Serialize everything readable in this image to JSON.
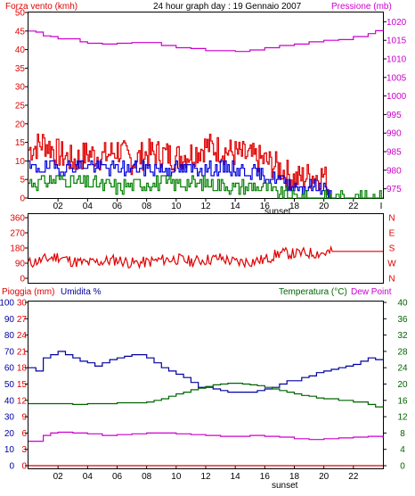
{
  "colors": {
    "wind": "#e00000",
    "gust_low": "#0000e0",
    "gust_green": "#008000",
    "pressure": "#cc00cc",
    "dir": "#e00000",
    "humidity": "#0000a0",
    "temp": "#006400",
    "dew": "#cc00cc",
    "rain": "#e00000",
    "axis": "#000000"
  },
  "chart_data": [
    {
      "type": "line",
      "title": "24 hour graph day : 19 Gennaio 2007",
      "left_axis_label": "Forza vento (kmh)",
      "right_axis_label": "Pressione (mb)",
      "left_ticks": [
        "0",
        "5",
        "10",
        "15",
        "20",
        "25",
        "30",
        "35",
        "40",
        "45",
        "50"
      ],
      "right_ticks": [
        "975",
        "980",
        "985",
        "990",
        "995",
        "1000",
        "1005",
        "1010",
        "1015",
        "1020"
      ],
      "x_ticks": [
        "02",
        "04",
        "06",
        "08",
        "10",
        "12",
        "14",
        "16",
        "18",
        "20",
        "22"
      ],
      "x_end_tick": "I",
      "x_label": "sunset",
      "ylim": [
        0,
        50
      ],
      "pressure_ylim": [
        972.5,
        1022.5
      ],
      "series": [
        {
          "kind": "pressure",
          "x": [
            0,
            0.5,
            1,
            1.5,
            2,
            2.5,
            3,
            3.5,
            4,
            5,
            6,
            7,
            8,
            9,
            10,
            11,
            12,
            13,
            14,
            15,
            16,
            17,
            18,
            19,
            20,
            21,
            22,
            23,
            23.5,
            24
          ],
          "values": [
            1017.5,
            1017.2,
            1016.2,
            1016,
            1015.4,
            1015.4,
            1015.4,
            1014.6,
            1014.2,
            1014,
            1014.2,
            1014.4,
            1014.4,
            1013.6,
            1013,
            1012.8,
            1012.2,
            1012.2,
            1012,
            1012.4,
            1013,
            1013.6,
            1014,
            1014.6,
            1015,
            1015.2,
            1016,
            1016.8,
            1017.6,
            1017.8
          ]
        },
        {
          "kind": "gust",
          "x": [
            0,
            1,
            2,
            3,
            4,
            5,
            6,
            7,
            8,
            9,
            10,
            11,
            12,
            13,
            14,
            15,
            16,
            17,
            18,
            19,
            20,
            20.5
          ],
          "values": [
            13,
            15,
            12,
            10,
            12,
            11,
            13,
            10,
            12,
            12,
            11,
            12,
            14,
            13,
            12,
            11,
            10,
            8,
            5,
            6,
            6,
            0
          ]
        },
        {
          "kind": "avg",
          "x": [
            0,
            2,
            4,
            6,
            8,
            10,
            12,
            14,
            16,
            17,
            18,
            19,
            20,
            20.5
          ],
          "values": [
            8,
            8,
            9,
            8,
            8,
            8,
            8,
            8,
            6,
            5,
            3,
            3,
            3,
            0
          ]
        },
        {
          "kind": "low",
          "x": [
            0,
            2,
            4,
            6,
            8,
            10,
            12,
            14,
            16,
            17,
            18,
            20,
            21,
            24
          ],
          "values": [
            4,
            5,
            4,
            3,
            4,
            4,
            4,
            3,
            3,
            1,
            0,
            0,
            0,
            0
          ]
        }
      ]
    },
    {
      "type": "line",
      "title": "",
      "left_ticks": [
        "0",
        "90",
        "180",
        "270",
        "360"
      ],
      "right_ticks": [
        "N",
        "E",
        "S",
        "W",
        "N"
      ],
      "x_ticks": [],
      "ylim": [
        0,
        360
      ],
      "series": [
        {
          "kind": "direction",
          "x": [
            0,
            1,
            2,
            3,
            4,
            5,
            6,
            7,
            8,
            9,
            10,
            11,
            12,
            13,
            14,
            15,
            16,
            17,
            18,
            19,
            20,
            21,
            22,
            23,
            24
          ],
          "values": [
            90,
            110,
            130,
            100,
            90,
            100,
            110,
            90,
            95,
            110,
            115,
            100,
            110,
            120,
            95,
            100,
            110,
            150,
            145,
            150,
            150,
            160,
            160,
            160,
            160
          ]
        }
      ]
    },
    {
      "type": "line",
      "title": "",
      "left_axis_label": "Pioggia (mm)",
      "left_axis_label2": "Umidita %",
      "right_axis_label": "Temperatura (°C)",
      "right_axis_label2": "Dew Point",
      "rain_ticks": [
        "0",
        "3",
        "6",
        "9",
        "12",
        "15",
        "18",
        "21",
        "24",
        "27",
        "30"
      ],
      "humidity_ticks": [
        "0",
        "10",
        "20",
        "30",
        "40",
        "50",
        "60",
        "70",
        "80",
        "90",
        "100"
      ],
      "temp_ticks": [
        "0",
        "4",
        "8",
        "12",
        "16",
        "20",
        "24",
        "28",
        "32",
        "36",
        "40"
      ],
      "x_ticks": [
        "02",
        "04",
        "06",
        "08",
        "10",
        "12",
        "14",
        "16",
        "18",
        "20",
        "22"
      ],
      "x_label": "sunset",
      "series": [
        {
          "kind": "humidity",
          "x": [
            0,
            0.5,
            1,
            1.5,
            2,
            2.5,
            3,
            3.5,
            4,
            4.5,
            5,
            5.5,
            6,
            6.5,
            7,
            7.5,
            8,
            8.5,
            9,
            9.5,
            10,
            10.5,
            11,
            11.5,
            12,
            12.5,
            13,
            13.5,
            14,
            14.5,
            15,
            15.5,
            16,
            16.5,
            17,
            17.5,
            18,
            18.5,
            19,
            19.5,
            20,
            20.5,
            21,
            21.5,
            22,
            22.5,
            23,
            23.5,
            24
          ],
          "values": [
            60,
            58,
            66,
            68,
            70,
            68,
            66,
            64,
            63,
            61,
            63,
            65,
            66,
            67,
            68,
            68,
            66,
            63,
            60,
            58,
            56,
            54,
            51,
            48,
            48,
            47,
            46,
            45,
            45,
            45,
            45,
            46,
            47,
            48,
            50,
            52,
            52,
            54,
            55,
            57,
            58,
            59,
            60,
            61,
            62,
            64,
            66,
            65,
            65
          ]
        },
        {
          "kind": "temp",
          "x": [
            0,
            1,
            2,
            3,
            4,
            5,
            6,
            7,
            8,
            8.5,
            9,
            9.5,
            10,
            10.5,
            11,
            11.5,
            12,
            12.5,
            13,
            13.5,
            14,
            14.5,
            15,
            15.5,
            16,
            16.5,
            17,
            17.5,
            18,
            18.5,
            19,
            19.5,
            20,
            21,
            22,
            23,
            23.5,
            24
          ],
          "values": [
            15.2,
            15.2,
            15.2,
            15,
            15.2,
            15.2,
            15.4,
            15.4,
            15.6,
            16,
            16.4,
            17,
            17.6,
            18,
            18.6,
            19,
            19.4,
            19.8,
            20,
            20.2,
            20.2,
            20,
            19.8,
            19.6,
            19.2,
            18.8,
            18.4,
            18,
            17.6,
            17.2,
            17,
            16.6,
            16.4,
            16,
            15.6,
            15,
            14.4,
            14.6
          ]
        },
        {
          "kind": "dew",
          "x": [
            0,
            0.5,
            1,
            1.5,
            2,
            3,
            4,
            5,
            6,
            7,
            8,
            9,
            10,
            11,
            12,
            13,
            14,
            15,
            16,
            17,
            18,
            19,
            20,
            21,
            22,
            23,
            24
          ],
          "values": [
            6,
            6,
            7.4,
            8,
            8.2,
            8,
            7.8,
            7.4,
            7.6,
            7.8,
            8,
            8,
            7.8,
            7.6,
            7.4,
            7.2,
            7.2,
            7.4,
            7.2,
            7,
            6.6,
            6.4,
            6.6,
            6.8,
            7,
            7.2,
            6.8
          ]
        },
        {
          "kind": "rain",
          "x": [
            0,
            24
          ],
          "values": [
            0,
            0
          ]
        }
      ]
    }
  ]
}
